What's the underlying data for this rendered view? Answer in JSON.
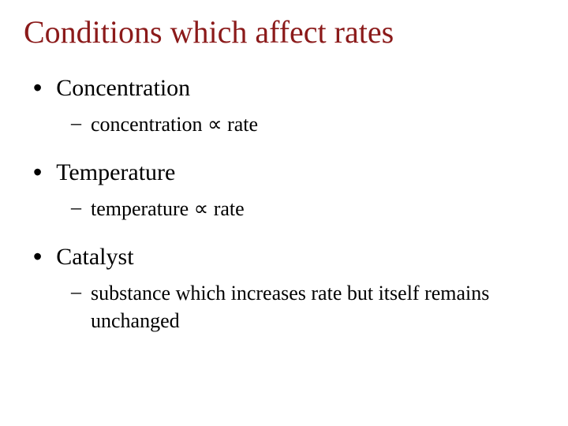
{
  "title": "Conditions which affect rates",
  "title_color": "#8b1a1a",
  "background_color": "#ffffff",
  "items": [
    {
      "label": "Concentration",
      "sub": "concentration  ∝   rate"
    },
    {
      "label": "Temperature",
      "sub": "temperature ∝ rate"
    },
    {
      "label": "Catalyst",
      "sub": "substance which increases rate but itself remains unchanged"
    }
  ],
  "fonts": {
    "title_family": "Times New Roman",
    "title_size_pt": 40,
    "bullet_l1_family": "Comic Sans MS",
    "bullet_l1_size_pt": 30,
    "bullet_l2_family": "Times New Roman",
    "bullet_l2_size_pt": 26
  },
  "bullet_l1_marker": "•",
  "bullet_l2_marker": "–"
}
